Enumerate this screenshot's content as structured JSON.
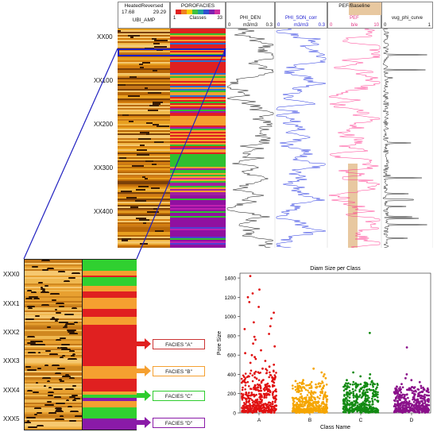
{
  "log_headers": {
    "ubi": {
      "title": "HeatedReversed",
      "min": "17.68",
      "max": "29.29",
      "curve": "UBI_AMP"
    },
    "porofacies": {
      "title": "POROFACIES",
      "min": "1",
      "max": "33",
      "curve": "Classes"
    },
    "phi_den": {
      "curve": "PHI_DEN",
      "min": "0",
      "max": "0.3",
      "unit": "m3/m3"
    },
    "phi_son": {
      "curve": "PHI_SON_corr",
      "min": "0",
      "max": "0.3",
      "unit": "m3/m3"
    },
    "pef": {
      "title": "PEF/Baseline",
      "curve": "PEF",
      "min": "0",
      "max": "10",
      "unit": "b/e"
    },
    "vug": {
      "curve": "vug_phi_curve",
      "min": "0",
      "max": "1"
    }
  },
  "upper_depths": [
    "XX00",
    "XX100",
    "XX200",
    "XX300",
    "XX400"
  ],
  "zoom_depths": [
    "XXX0",
    "XXX1",
    "XXX2",
    "XXX3",
    "XXX4",
    "XXX5"
  ],
  "facies_labels": [
    {
      "label": "FACIES \"A\"",
      "color": "#e02020"
    },
    {
      "label": "FACIES \"B\"",
      "color": "#f5a030"
    },
    {
      "label": "FACIES \"C\"",
      "color": "#2ecc2e"
    },
    {
      "label": "FACIES \"D\"",
      "color": "#8a1aa8"
    }
  ],
  "chart_data": {
    "type": "scatter",
    "title": "Diam Size per Class",
    "xlabel": "Class Name",
    "ylabel": "Pore Size",
    "categories": [
      "A",
      "B",
      "C",
      "D"
    ],
    "ylim": [
      0,
      1450
    ],
    "yticks": [
      0,
      200,
      400,
      600,
      800,
      1000,
      1200,
      1400
    ],
    "series": [
      {
        "name": "A",
        "color": "#e01010",
        "bulk_max": 430,
        "outliers": [
          1420,
          1280,
          1240,
          1200,
          1150,
          1100,
          1040,
          980,
          940,
          900,
          870,
          820,
          790,
          760,
          720,
          690,
          650,
          620,
          600,
          580,
          560,
          540,
          520,
          500,
          480,
          460
        ]
      },
      {
        "name": "B",
        "color": "#f5a500",
        "bulk_max": 300,
        "outliers": [
          460,
          420,
          400,
          380,
          360,
          340,
          330
        ]
      },
      {
        "name": "C",
        "color": "#128a12",
        "bulk_max": 300,
        "outliers": [
          830,
          420,
          400,
          380,
          360,
          340,
          330,
          320
        ]
      },
      {
        "name": "D",
        "color": "#8a108a",
        "bulk_max": 250,
        "outliers": [
          680,
          400,
          360,
          340,
          320,
          300,
          280
        ]
      }
    ]
  }
}
